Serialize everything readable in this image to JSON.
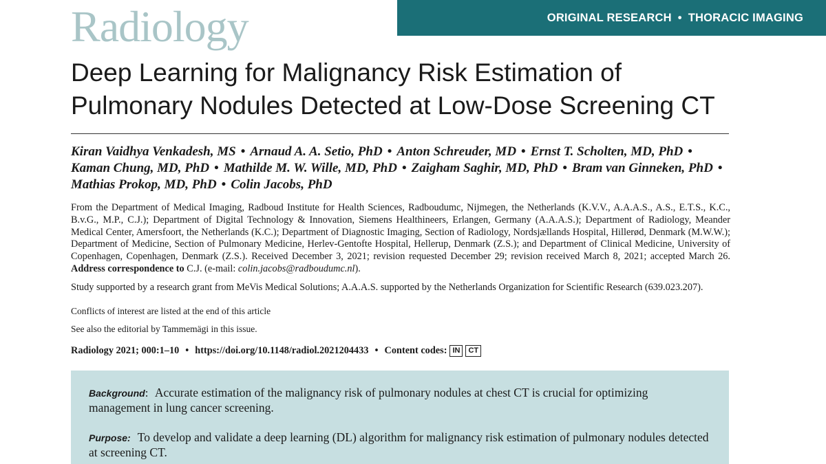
{
  "journal": {
    "logo_text": "Radiology"
  },
  "section": {
    "left": "ORIGINAL RESEARCH",
    "separator": "•",
    "right": "THORACIC IMAGING"
  },
  "article": {
    "title_line1": "Deep Learning for Malignancy Risk Estimation of",
    "title_line2": "Pulmonary Nodules Detected at Low-Dose Screening CT"
  },
  "authors": [
    "Kiran Vaidhya Venkadesh, MS",
    "Arnaud A. A. Setio, PhD",
    "Anton Schreuder, MD",
    "Ernst T. Scholten, MD, PhD",
    "Kaman Chung, MD, PhD",
    "Mathilde M. W. Wille, MD, PhD",
    "Zaigham Saghir, MD, PhD",
    "Bram van Ginneken, PhD",
    "Mathias Prokop, MD, PhD",
    "Colin Jacobs, PhD"
  ],
  "affiliation": {
    "text": "From the Department of Medical Imaging, Radboud Institute for Health Sciences, Radboudumc, Nijmegen, the Netherlands (K.V.V., A.A.A.S., A.S., E.T.S., K.C., B.v.G., M.P., C.J.); Department of Digital Technology & Innovation, Siemens Healthineers, Erlangen, Germany (A.A.A.S.); Department of Radiology, Meander Medical Center, Amersfoort, the Netherlands (K.C.); Department of Diagnostic Imaging, Section of Radiology, Nordsjællands Hospital, Hillerød, Denmark (M.W.W.); Department of Medicine, Section of Pulmonary Medicine, Herlev-Gentofte Hospital, Hellerup, Denmark (Z.S.); and Department of Clinical Medicine, University of Copenhagen, Copenhagen, Denmark (Z.S.). Received December 3, 2021; revision requested December 29; revision received March 8, 2021; accepted March 26.",
    "correspondence_label": "Address correspondence to",
    "correspondence_text": "C.J. (e-mail:",
    "email": "colin.jacobs@radboudumc.nl",
    "correspondence_end": ")."
  },
  "support": "Study supported by a research grant from MeVis Medical Solutions; A.A.A.S. supported by the Netherlands Organization for Scientific Research (639.023.207).",
  "conflicts": "Conflicts of interest are listed at the end of this article",
  "editorial": "See also the editorial by Tammemägi in this issue.",
  "citation": {
    "ref": "Radiology 2021; 000:1–10",
    "doi": "https://doi.org/10.1148/radiol.2021204433",
    "codes_label": "Content codes:",
    "codes": [
      "IN",
      "CT"
    ]
  },
  "abstract": {
    "background_label": "Background",
    "background_colon": ":",
    "background_text": "Accurate estimation of the malignancy risk of pulmonary nodules at chest CT is crucial for optimizing management in lung cancer screening.",
    "purpose_label": "Purpose:",
    "purpose_text": "To develop and validate a deep learning (DL) algorithm for malignancy risk estimation of pulmonary nodules detected at screening CT."
  },
  "colors": {
    "banner": "#1b6f77",
    "logo": "#a9c5c7",
    "abstract_bg": "#c7dfe1"
  }
}
